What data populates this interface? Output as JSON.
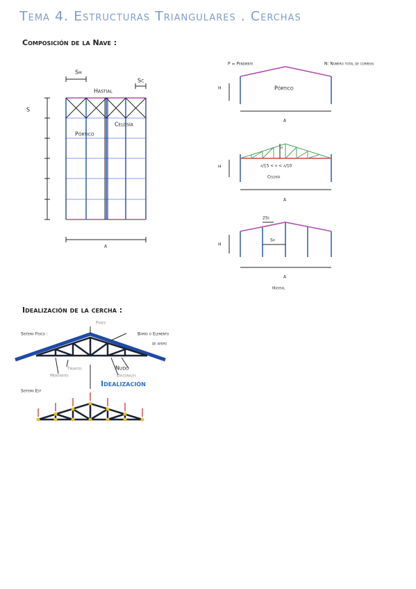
{
  "header": {
    "title": "Tema 4. Estructuras Triangulares . Cerchas"
  },
  "nave": {
    "heading": "Composición de la Nave :",
    "plan": {
      "sh": "Sh",
      "sc": "Sc",
      "hastial": "Hastial",
      "s": "S",
      "portico": "Pórtico",
      "celosia": "Celosía",
      "a": "a"
    },
    "portico": {
      "pendiente": "P = Pendiente",
      "correas": "N: Número total de correas",
      "h": "H",
      "label": "Pórtico",
      "a": "a"
    },
    "celosia": {
      "h_upper": "H",
      "h_lower": "h",
      "rule": "a/15 < h < a/10",
      "label": "Celosía",
      "a": "a"
    },
    "hastial": {
      "sc": "2Sc",
      "h": "H",
      "sh": "Sh",
      "a": "a",
      "label": "Hastial"
    }
  },
  "cercha": {
    "heading": "Idealización de la cercha :",
    "fisico": "Sistema Físico :",
    "pares": "Pares",
    "barra": "Barra o Elemento",
    "apoyo": "de apoyo",
    "tirantes": "Tirantes",
    "montantes": "Montantes",
    "nudo": "Nudo",
    "diagonales": "Diagonales",
    "idealizacion": "Idealización",
    "est": "Sistema Est"
  }
}
